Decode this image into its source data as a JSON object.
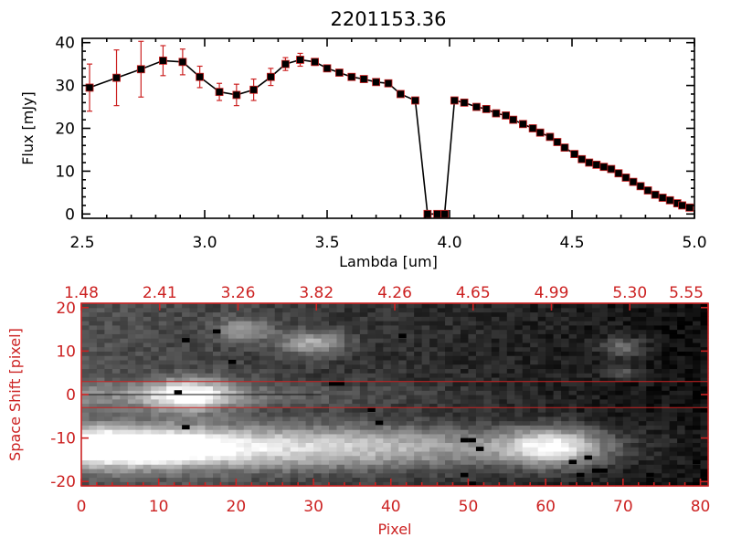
{
  "chart_data": [
    {
      "type": "line",
      "title": "2201153.36",
      "xlabel": "Lambda [um]",
      "ylabel": "Flux [mJy]",
      "xlim": [
        2.5,
        5.0
      ],
      "ylim": [
        -1,
        41
      ],
      "xticks": [
        "2.5",
        "3.0",
        "3.5",
        "4.0",
        "4.5",
        "5.0"
      ],
      "yticks": [
        "0",
        "10",
        "20",
        "30",
        "40"
      ],
      "colors": {
        "line": "#000000",
        "marker": "#000000",
        "errorbar": "#cc2222",
        "marker_edge": "#cc2222"
      },
      "series": [
        {
          "x": [
            2.53,
            2.64,
            2.74,
            2.83,
            2.91,
            2.98,
            3.06,
            3.13,
            3.2,
            3.27,
            3.33,
            3.39,
            3.45,
            3.5,
            3.55,
            3.6,
            3.65,
            3.7,
            3.75,
            3.8,
            3.86,
            3.91,
            3.95,
            3.98,
            4.02,
            4.06,
            4.11,
            4.15,
            4.19,
            4.23,
            4.26,
            4.3,
            4.34,
            4.37,
            4.41,
            4.44,
            4.47,
            4.51,
            4.54,
            4.57,
            4.6,
            4.63,
            4.66,
            4.69,
            4.72,
            4.75,
            4.78,
            4.81,
            4.84,
            4.87,
            4.9,
            4.93,
            4.95,
            4.98
          ],
          "y": [
            29.5,
            31.8,
            33.8,
            35.8,
            35.5,
            32.0,
            28.5,
            27.8,
            29.0,
            32.0,
            35.0,
            36.0,
            35.5,
            34.0,
            33.0,
            32.0,
            31.5,
            30.8,
            30.5,
            28.0,
            26.5,
            0.0,
            0.0,
            0.0,
            26.5,
            26.0,
            25.0,
            24.5,
            23.5,
            23.0,
            22.0,
            21.0,
            20.0,
            19.0,
            18.0,
            16.8,
            15.5,
            14.0,
            12.8,
            12.0,
            11.5,
            11.0,
            10.5,
            9.5,
            8.5,
            7.5,
            6.5,
            5.5,
            4.5,
            3.8,
            3.2,
            2.5,
            2.0,
            1.5
          ],
          "yerr": [
            5.5,
            6.5,
            6.5,
            3.5,
            3.0,
            2.5,
            2.0,
            2.5,
            2.5,
            2.0,
            1.5,
            1.5,
            0.8,
            0.6,
            0.6,
            0.5,
            0.5,
            0.5,
            0.5,
            0.5,
            0.5,
            0.5,
            0.5,
            0.5,
            0.5,
            0.5,
            0.5,
            0.5,
            0.5,
            0.5,
            0.5,
            0.5,
            0.5,
            0.5,
            0.5,
            0.5,
            0.5,
            0.5,
            0.5,
            0.5,
            0.5,
            0.5,
            0.5,
            0.5,
            0.5,
            0.5,
            0.5,
            0.5,
            0.5,
            0.5,
            0.5,
            0.5,
            0.5,
            0.5
          ]
        }
      ]
    },
    {
      "type": "heatmap",
      "xlabel": "Pixel",
      "ylabel": "Space Shift [pixel]",
      "xlim": [
        0,
        81
      ],
      "ylim": [
        -21,
        21
      ],
      "xticks": [
        "0",
        "10",
        "20",
        "30",
        "40",
        "50",
        "60",
        "70",
        "80"
      ],
      "yticks": [
        "-20",
        "-10",
        "0",
        "10",
        "20"
      ],
      "top_ticks": [
        "1.48",
        "2.41",
        "3.26",
        "3.82",
        "4.26",
        "4.65",
        "4.99",
        "5.30",
        "5.55"
      ],
      "colormap": "grayscale",
      "colors": {
        "axes": "#cc2222",
        "aperture_lines": "#cc2222"
      },
      "aperture_lines_y": [
        3,
        -3
      ],
      "trace_line_y": 0,
      "bright_features": [
        {
          "x": 14,
          "y": 0,
          "sx": 4,
          "sy": 2.5,
          "amp": 0.7
        },
        {
          "x": 4,
          "y": -12,
          "sx": 10,
          "sy": 3,
          "amp": 0.85
        },
        {
          "x": 30,
          "y": -12,
          "sx": 22,
          "sy": 3.5,
          "amp": 0.6
        },
        {
          "x": 61,
          "y": -12,
          "sx": 4.5,
          "sy": 3,
          "amp": 0.7
        },
        {
          "x": 30,
          "y": 12,
          "sx": 3,
          "sy": 2,
          "amp": 0.45
        },
        {
          "x": 21,
          "y": 15,
          "sx": 2.5,
          "sy": 2,
          "amp": 0.35
        },
        {
          "x": 70,
          "y": 11,
          "sx": 2,
          "sy": 1.5,
          "amp": 0.35
        },
        {
          "x": 70,
          "y": 5,
          "sx": 2,
          "sy": 1,
          "amp": 0.25
        }
      ],
      "bad_pixels": [
        [
          12,
          0
        ],
        [
          13,
          12
        ],
        [
          17,
          14
        ],
        [
          19,
          7
        ],
        [
          13,
          -8
        ],
        [
          32,
          2
        ],
        [
          33,
          2
        ],
        [
          37,
          -4
        ],
        [
          38,
          -7
        ],
        [
          41,
          13
        ],
        [
          49,
          -11
        ],
        [
          50,
          -11
        ],
        [
          51,
          -13
        ],
        [
          49,
          -19
        ],
        [
          50,
          -21
        ],
        [
          63,
          -16
        ],
        [
          64,
          -19
        ],
        [
          65,
          -15
        ],
        [
          66,
          -18
        ],
        [
          67,
          -18
        ],
        [
          73,
          -19
        ],
        [
          79,
          -16
        ],
        [
          80,
          -19
        ]
      ]
    }
  ]
}
